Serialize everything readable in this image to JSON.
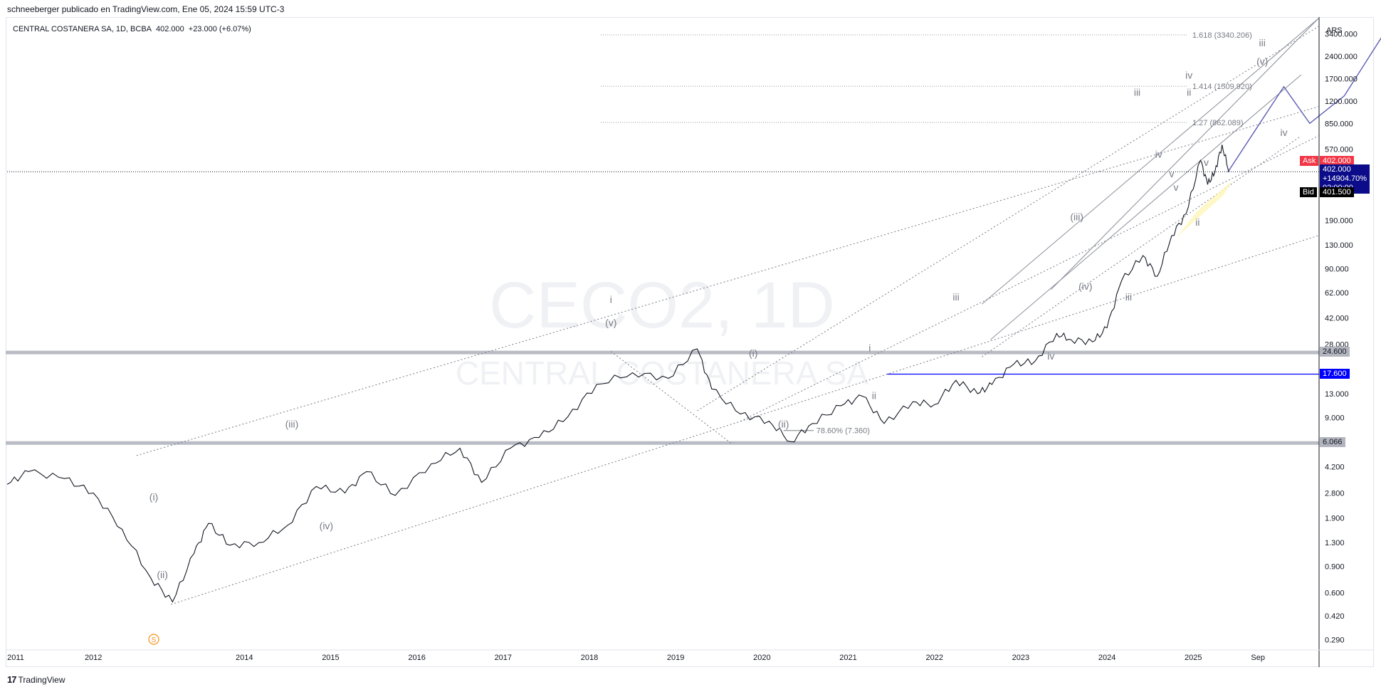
{
  "header": {
    "publisher_line": "schneeberger publicado en TradingView.com, Ene 05, 2024 15:59 UTC-3"
  },
  "legend": {
    "symbol": "CENTRAL COSTANERA SA, 1D, BCBA",
    "price": "402.000",
    "change": "+23.000 (+6.07%)"
  },
  "watermark": {
    "ticker": "CECO2, 1D",
    "name": "CENTRAL COSTANERA SA"
  },
  "footer": {
    "brand": "TradingView",
    "logo": "tradingview-logo-icon"
  },
  "axis": {
    "currency": "ARS"
  },
  "colors": {
    "price_line": "#131722",
    "ask": "#f23645",
    "bid": "#000000",
    "current_box": "#0c0c8a",
    "blue_level": "#0000ff",
    "projection": "#5b5bb5",
    "gray_level": "#9598a1",
    "highlight": "#fff5b8"
  },
  "chart_data": {
    "type": "line",
    "scale": "log",
    "ylim": [
      0.25,
      4300
    ],
    "xlim": [
      "2011-01",
      "2026-03"
    ],
    "x_ticks": [
      "2011",
      "2012",
      "2014",
      "2015",
      "2016",
      "2017",
      "2018",
      "2019",
      "2020",
      "2021",
      "2022",
      "2023",
      "2024",
      "2025",
      "Sep"
    ],
    "y_ticks": [
      "0.290",
      "0.420",
      "0.600",
      "0.900",
      "1.300",
      "1.900",
      "2.800",
      "4.200",
      "9.000",
      "13.000",
      "28.000",
      "42.000",
      "62.000",
      "90.000",
      "130.000",
      "190.000",
      "570.000",
      "850.000",
      "1200.000",
      "1700.000",
      "2400.000",
      "3400.000"
    ],
    "series": [
      {
        "values": [
          [
            "2011-01",
            3.2
          ],
          [
            "2011-04",
            3.9
          ],
          [
            "2011-09",
            3.5
          ],
          [
            "2012-01",
            2.8
          ],
          [
            "2012-05",
            1.6
          ],
          [
            "2012-09",
            0.75
          ],
          [
            "2012-12",
            0.52
          ],
          [
            "2013-03",
            1.1
          ],
          [
            "2013-05",
            1.75
          ],
          [
            "2013-08",
            1.25
          ],
          [
            "2013-12",
            1.3
          ],
          [
            "2014-04",
            1.7
          ],
          [
            "2014-08",
            3.1
          ],
          [
            "2014-12",
            2.8
          ],
          [
            "2015-03",
            3.9
          ],
          [
            "2015-07",
            2.7
          ],
          [
            "2015-12",
            4.4
          ],
          [
            "2016-04",
            5.6
          ],
          [
            "2016-07",
            3.3
          ],
          [
            "2016-11",
            5.6
          ],
          [
            "2017-03",
            6.6
          ],
          [
            "2017-07",
            9.1
          ],
          [
            "2017-11",
            15
          ],
          [
            "2018-04",
            18
          ],
          [
            "2018-09",
            16.5
          ],
          [
            "2019-01",
            26
          ],
          [
            "2019-03",
            14
          ],
          [
            "2019-07",
            9.5
          ],
          [
            "2019-11",
            8.5
          ],
          [
            "2020-02",
            6.2
          ],
          [
            "2020-05",
            8.2
          ],
          [
            "2020-09",
            10.8
          ],
          [
            "2020-12",
            12.5
          ],
          [
            "2021-03",
            8.2
          ],
          [
            "2021-07",
            11.5
          ],
          [
            "2021-10",
            11
          ],
          [
            "2022-01",
            16
          ],
          [
            "2022-04",
            13
          ],
          [
            "2022-06",
            15
          ],
          [
            "2022-09",
            20.5
          ],
          [
            "2022-12",
            21.5
          ],
          [
            "2023-03",
            33
          ],
          [
            "2023-05",
            30
          ],
          [
            "2023-08",
            29
          ],
          [
            "2023-10",
            36
          ],
          [
            "2023-12",
            74
          ],
          [
            "2024-03",
            110
          ],
          [
            "2024-05",
            80
          ],
          [
            "2024-07",
            150
          ],
          [
            "2024-09",
            210
          ],
          [
            "2024-11",
            480
          ],
          [
            "2024-12",
            330
          ],
          [
            "2025-01",
            400
          ],
          [
            "2025-02",
            610
          ],
          [
            "2025-03",
            402
          ]
        ]
      }
    ],
    "price_labels": [
      {
        "label": "Ask",
        "value": "402.000"
      },
      {
        "label": "current",
        "value": "402.000",
        "change": "+14904.70%",
        "countdown": "02:00:00"
      },
      {
        "label": "Bid",
        "value": "401.500"
      },
      {
        "label": "level",
        "value": "24.600"
      },
      {
        "label": "level",
        "value": "17.600"
      },
      {
        "label": "level",
        "value": "6.066"
      }
    ],
    "fib_levels": [
      {
        "ratio": "1.618",
        "value": 3340.206,
        "label": "1.618 (3340.206)"
      },
      {
        "ratio": "1.414",
        "value": 1509.92,
        "label": "1.414 (1509.920)"
      },
      {
        "ratio": "1.27",
        "value": 862.089,
        "label": "1.27 (862.089)"
      }
    ],
    "retracement": {
      "label": "78.60% (7.360)",
      "value": 7.36
    },
    "wave_labels": [
      "(i)",
      "(ii)",
      "(iii)",
      "(iv)",
      "(v)",
      "i",
      "ii",
      "iii",
      "iv",
      "v",
      "iii",
      "iv",
      "v",
      "(i)",
      "(ii)",
      "(iii)",
      "(iv)",
      "ii",
      "i",
      "iii",
      "iv",
      "(v)",
      "iii",
      "ii",
      "iv",
      "v"
    ],
    "events": [
      {
        "label": "S"
      }
    ]
  }
}
